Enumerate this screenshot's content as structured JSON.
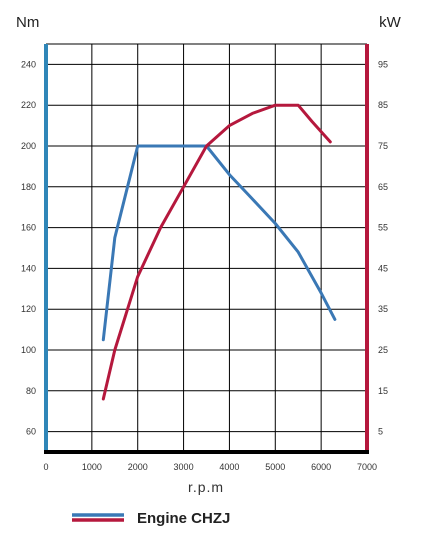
{
  "chart_data": {
    "type": "line",
    "left_axis_unit": "Nm",
    "right_axis_unit": "kW",
    "xlabel": "r.p.m",
    "legend_label": "Engine CHZJ",
    "x_ticks": [
      0,
      1000,
      2000,
      3000,
      4000,
      5000,
      6000,
      7000
    ],
    "xlim": [
      0,
      7000
    ],
    "left_ticks": [
      60,
      80,
      100,
      120,
      140,
      160,
      180,
      200,
      220,
      240
    ],
    "left_ylim": [
      50,
      250
    ],
    "right_ticks": [
      5,
      15,
      25,
      35,
      45,
      55,
      65,
      75,
      85,
      95
    ],
    "right_ylim": [
      0,
      100
    ],
    "grid": true,
    "series": [
      {
        "axis": "left",
        "color": "#3a78b5",
        "x": [
          1250,
          1500,
          2000,
          2500,
          3000,
          3500,
          4000,
          4500,
          5000,
          5500,
          6000,
          6300
        ],
        "values": [
          105,
          155,
          200,
          200,
          200,
          200,
          186,
          174,
          162,
          148,
          128,
          115
        ]
      },
      {
        "axis": "right",
        "color": "#b5183d",
        "x": [
          1250,
          1500,
          2000,
          2500,
          3000,
          3500,
          4000,
          4500,
          5000,
          5500,
          5800,
          6200
        ],
        "values": [
          13,
          25,
          43,
          55,
          65,
          75,
          80,
          83,
          85,
          85,
          81,
          76
        ]
      }
    ],
    "colors": {
      "left_axis": "#2f86b8",
      "right_axis": "#b5183d",
      "baseline": "#000000",
      "grid": "#000000"
    }
  }
}
